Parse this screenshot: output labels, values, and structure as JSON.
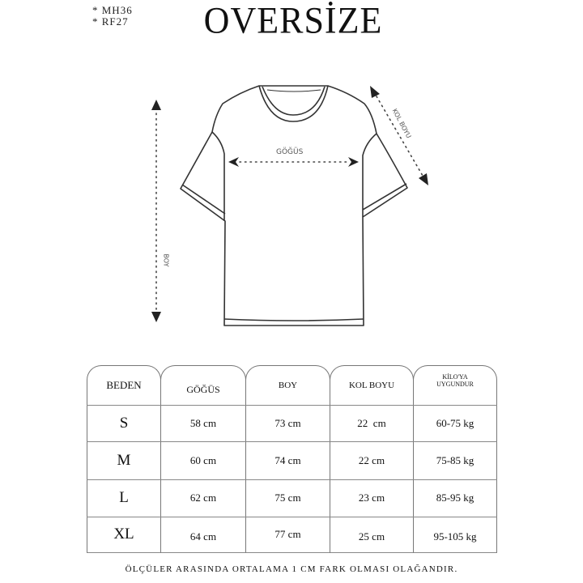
{
  "header": {
    "codes": [
      "* MH36",
      "* RF27"
    ],
    "title": "OVERSİZE"
  },
  "diagram": {
    "chest_label": "GÖĞÜS",
    "length_label": "BOY",
    "sleeve_label": "KOL BOYU"
  },
  "table": {
    "headers": [
      "BEDEN",
      "GÖĞÜS",
      "BOY",
      "KOL BOYU",
      "KİLO'YA UYGUNDUR"
    ],
    "rows": [
      [
        "S",
        "58 cm",
        "73 cm",
        "22  cm",
        "60-75 kg"
      ],
      [
        "M",
        "60 cm",
        "74 cm",
        "22 cm",
        "75-85 kg"
      ],
      [
        "L",
        "62 cm",
        "75 cm",
        "23 cm",
        "85-95 kg"
      ],
      [
        "XL",
        "64 cm",
        "77 cm",
        "25 cm",
        "95-105 kg"
      ]
    ]
  },
  "footnote": "ÖLÇÜLER ARASINDA ORTALAMA 1 CM FARK OLMASI OLAĞANDIR."
}
